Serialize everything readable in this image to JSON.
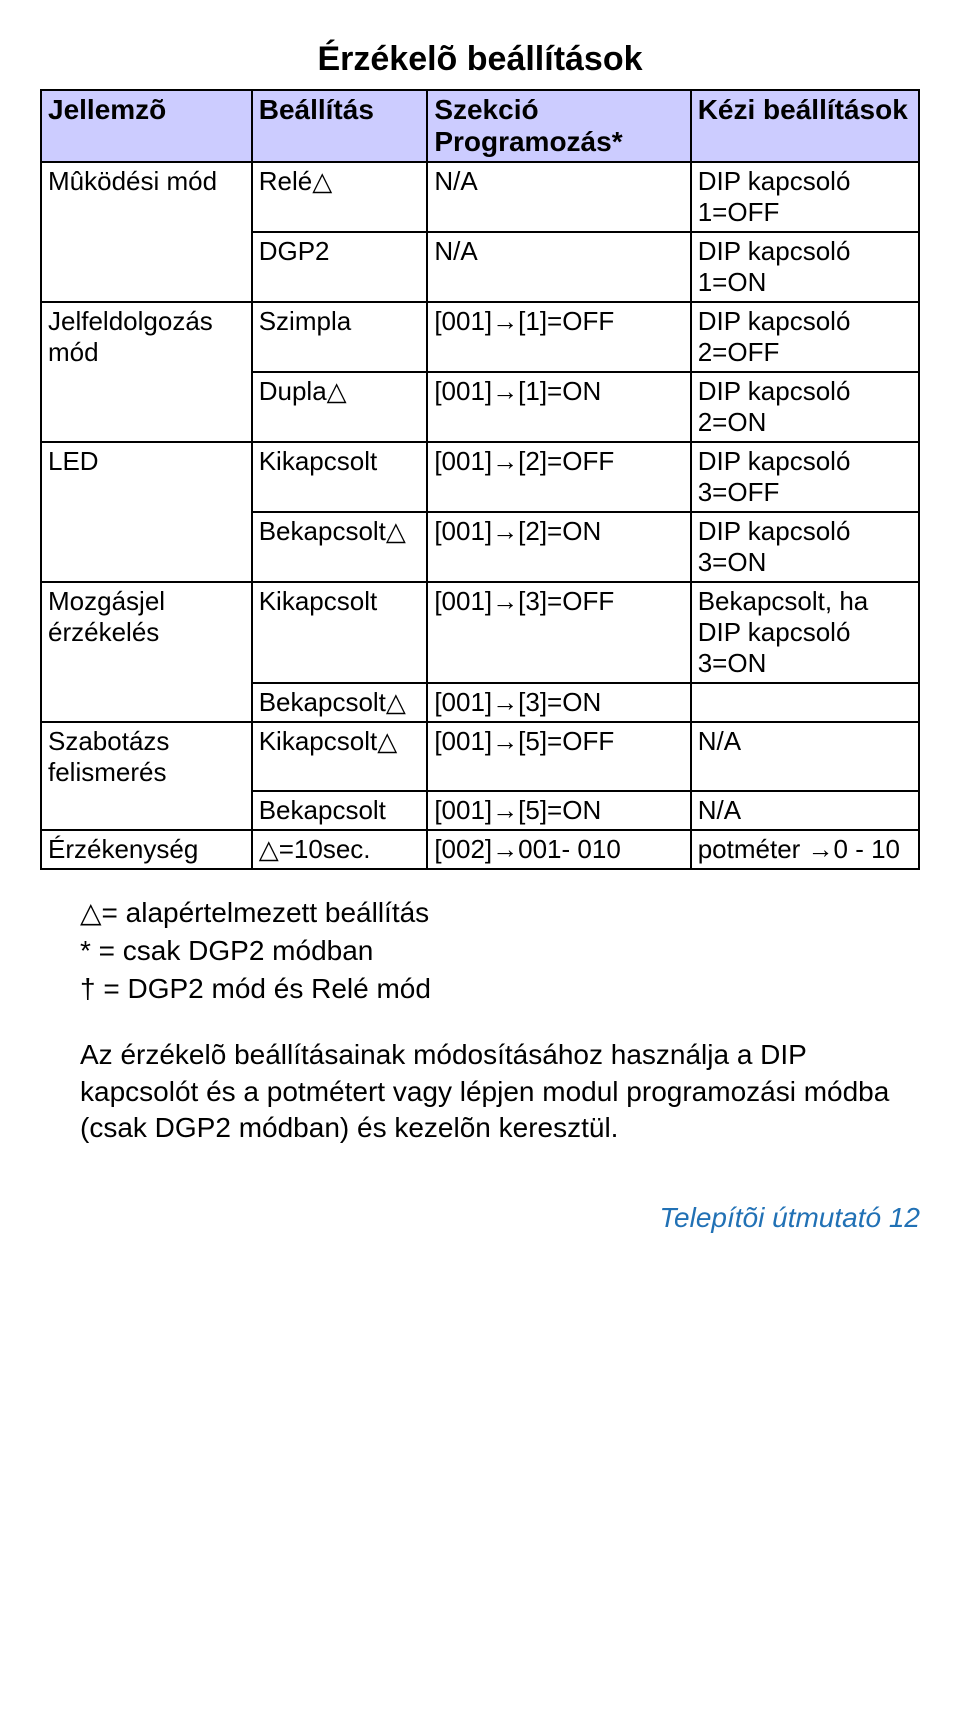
{
  "title": "Érzékelõ beállítások",
  "header": {
    "c1": "Jellemzõ",
    "c2": "Beállítás",
    "c3": "Szekció Programozás*",
    "c4": "Kézi beállítások"
  },
  "rows": [
    {
      "c1": "Mûködési mód",
      "c2": "Relé△",
      "c3": "N/A",
      "c4": "DIP kapcsoló 1=OFF"
    },
    {
      "c1": "",
      "c2": "DGP2",
      "c3": "N/A",
      "c4": "DIP kapcsoló 1=ON"
    },
    {
      "c1": "Jelfeldolgozás mód",
      "c2": "Szimpla",
      "c3": "[001]→[1]=OFF",
      "c4": "DIP kapcsoló 2=OFF"
    },
    {
      "c1": "",
      "c2": "Dupla△",
      "c3": "[001]→[1]=ON",
      "c4": "DIP kapcsoló 2=ON"
    },
    {
      "c1": "LED",
      "c2": "Kikapcsolt",
      "c3": "[001]→[2]=OFF",
      "c4": "DIP kapcsoló 3=OFF"
    },
    {
      "c1": "",
      "c2": "Bekapcsolt△",
      "c3": "[001]→[2]=ON",
      "c4": "DIP kapcsoló 3=ON"
    },
    {
      "c1": "Mozgásjel érzékelés",
      "c2": "Kikapcsolt",
      "c3": "[001]→[3]=OFF",
      "c4": "Bekapcsolt, ha DIP kapcsoló 3=ON"
    },
    {
      "c1": "",
      "c2": "Bekapcsolt△",
      "c3": "[001]→[3]=ON",
      "c4": ""
    },
    {
      "c1": "Szabotázs felismerés",
      "c2": "Kikapcsolt△",
      "c3": "[001]→[5]=OFF",
      "c4": "N/A"
    },
    {
      "c1": "",
      "c2": "Bekapcsolt",
      "c3": "[001]→[5]=ON",
      "c4": "N/A"
    },
    {
      "c1": "Érzékenység",
      "c2": "△=10sec.",
      "c3": "[002]→001- 010",
      "c4": "potméter →0 - 10"
    }
  ],
  "legend": [
    "△= alapértelmezett beállítás",
    "* = csak DGP2 módban",
    "† = DGP2 mód és Relé mód"
  ],
  "paragraph": "Az érzékelõ beállításainak módosításához használja a DIP kapcsolót és a potmétert vagy lépjen modul programozási módba (csak DGP2 módban) és kezelõn keresztül.",
  "footer": "Telepítõi útmutató 12",
  "colors": {
    "header_bg": "#ccccff",
    "border": "#000000",
    "text": "#000000",
    "footer": "#2171b5",
    "background": "#ffffff"
  },
  "fonts": {
    "title_size": 34,
    "body_size": 26,
    "header_size": 28,
    "footer_size": 28
  }
}
